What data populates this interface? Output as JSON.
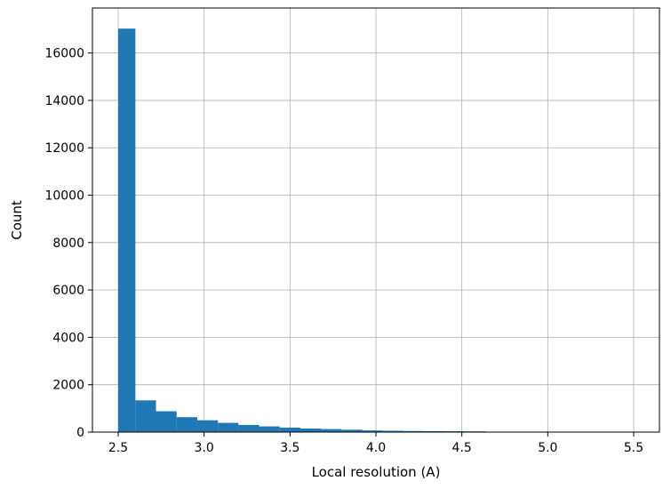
{
  "chart_data": {
    "type": "bar",
    "title": "",
    "xlabel": "Local resolution (A)",
    "ylabel": "Count",
    "xlim": [
      2.35,
      5.65
    ],
    "ylim": [
      0,
      17900
    ],
    "grid": true,
    "legend": "none",
    "bar_color": "#1f77b4",
    "x_ticks": [
      2.5,
      3.0,
      3.5,
      4.0,
      4.5,
      5.0,
      5.5
    ],
    "x_tick_labels": [
      "2.5",
      "3.0",
      "3.5",
      "4.0",
      "4.5",
      "5.0",
      "5.5"
    ],
    "y_ticks": [
      0,
      2000,
      4000,
      6000,
      8000,
      10000,
      12000,
      14000,
      16000
    ],
    "y_tick_labels": [
      "0",
      "2000",
      "4000",
      "6000",
      "8000",
      "10000",
      "12000",
      "14000",
      "16000"
    ],
    "bins": [
      {
        "x0": 2.5,
        "x1": 2.6,
        "count": 17030
      },
      {
        "x0": 2.6,
        "x1": 2.72,
        "count": 1340
      },
      {
        "x0": 2.72,
        "x1": 2.84,
        "count": 880
      },
      {
        "x0": 2.84,
        "x1": 2.96,
        "count": 630
      },
      {
        "x0": 2.96,
        "x1": 3.08,
        "count": 500
      },
      {
        "x0": 3.08,
        "x1": 3.2,
        "count": 390
      },
      {
        "x0": 3.2,
        "x1": 3.32,
        "count": 300
      },
      {
        "x0": 3.32,
        "x1": 3.44,
        "count": 240
      },
      {
        "x0": 3.44,
        "x1": 3.56,
        "count": 190
      },
      {
        "x0": 3.56,
        "x1": 3.68,
        "count": 150
      },
      {
        "x0": 3.68,
        "x1": 3.8,
        "count": 130
      },
      {
        "x0": 3.8,
        "x1": 3.92,
        "count": 100
      },
      {
        "x0": 3.92,
        "x1": 4.04,
        "count": 70
      },
      {
        "x0": 4.04,
        "x1": 4.16,
        "count": 55
      },
      {
        "x0": 4.16,
        "x1": 4.28,
        "count": 45
      },
      {
        "x0": 4.28,
        "x1": 4.4,
        "count": 40
      },
      {
        "x0": 4.4,
        "x1": 4.52,
        "count": 35
      },
      {
        "x0": 4.52,
        "x1": 4.64,
        "count": 30
      },
      {
        "x0": 4.64,
        "x1": 4.76,
        "count": 8
      },
      {
        "x0": 4.76,
        "x1": 4.88,
        "count": 6
      },
      {
        "x0": 4.88,
        "x1": 5.0,
        "count": 5
      },
      {
        "x0": 5.0,
        "x1": 5.12,
        "count": 4
      },
      {
        "x0": 5.12,
        "x1": 5.24,
        "count": 3
      },
      {
        "x0": 5.24,
        "x1": 5.36,
        "count": 3
      },
      {
        "x0": 5.36,
        "x1": 5.5,
        "count": 2
      }
    ]
  }
}
